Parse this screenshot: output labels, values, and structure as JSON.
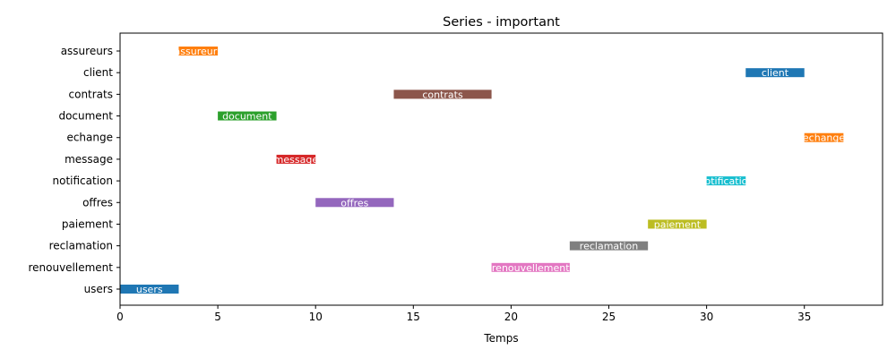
{
  "chart_data": {
    "type": "bar",
    "orientation": "horizontal",
    "title": "Series - important",
    "xlabel": "Temps",
    "ylabel": "",
    "xlim": [
      0,
      39
    ],
    "x_ticks": [
      0,
      5,
      10,
      15,
      20,
      25,
      30,
      35
    ],
    "categories": [
      "users",
      "renouvellement",
      "reclamation",
      "paiement",
      "offres",
      "notification",
      "message",
      "echange",
      "document",
      "contrats",
      "client",
      "assureurs"
    ],
    "tasks": [
      {
        "category": "users",
        "label": "users",
        "start": 0,
        "end": 3,
        "color": "#1f77b4"
      },
      {
        "category": "assureurs",
        "label": "assureurs",
        "start": 3,
        "end": 5,
        "color": "#ff7f0e"
      },
      {
        "category": "document",
        "label": "document",
        "start": 5,
        "end": 8,
        "color": "#2ca02c"
      },
      {
        "category": "message",
        "label": "message",
        "start": 8,
        "end": 10,
        "color": "#d62728"
      },
      {
        "category": "offres",
        "label": "offres",
        "start": 10,
        "end": 14,
        "color": "#9467bd"
      },
      {
        "category": "contrats",
        "label": "contrats",
        "start": 14,
        "end": 19,
        "color": "#8c564b"
      },
      {
        "category": "renouvellement",
        "label": "renouvellement",
        "start": 19,
        "end": 23,
        "color": "#e377c2"
      },
      {
        "category": "reclamation",
        "label": "reclamation",
        "start": 23,
        "end": 27,
        "color": "#7f7f7f"
      },
      {
        "category": "paiement",
        "label": "paiement",
        "start": 27,
        "end": 30,
        "color": "#bcbd22"
      },
      {
        "category": "notification",
        "label": "notification",
        "start": 30,
        "end": 32,
        "color": "#17becf"
      },
      {
        "category": "client",
        "label": "client",
        "start": 32,
        "end": 35,
        "color": "#1f77b4"
      },
      {
        "category": "echange",
        "label": "echange",
        "start": 35,
        "end": 37,
        "color": "#ff7f0e"
      }
    ],
    "grid": false,
    "legend": "none"
  }
}
